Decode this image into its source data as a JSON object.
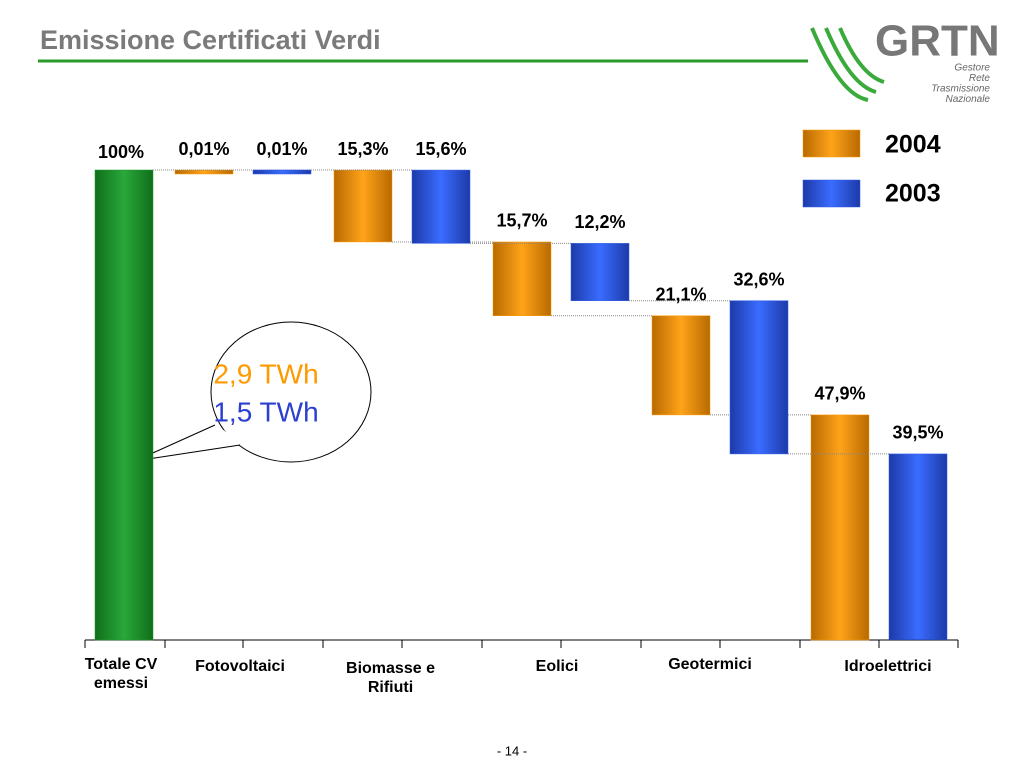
{
  "header": {
    "title": "Emissione Certificati Verdi"
  },
  "logo": {
    "name": "GRTN",
    "tagline": [
      "Gestore",
      "Rete",
      "Trasmissione",
      "Nazionale"
    ]
  },
  "chart_data": {
    "type": "waterfall",
    "categories": [
      "Totale CV emessi",
      "Fotovoltaici",
      "Biomasse e Rifiuti",
      "Eolici",
      "Geotermici",
      "Idroelettrici"
    ],
    "total": {
      "value": 100,
      "value_label": "100%",
      "color": "#1e9a2a"
    },
    "series": [
      {
        "name": "2004",
        "color": "#ff9900",
        "values": [
          null,
          0.01,
          15.3,
          15.7,
          21.1,
          47.9
        ],
        "value_labels": [
          null,
          "0,01%",
          "15,3%",
          "15,7%",
          "21,1%",
          "47,9%"
        ]
      },
      {
        "name": "2003",
        "color": "#2f5fe8",
        "values": [
          null,
          0.01,
          15.6,
          12.2,
          32.6,
          39.5
        ],
        "value_labels": [
          null,
          "0,01%",
          "15,6%",
          "12,2%",
          "32,6%",
          "39,5%"
        ]
      }
    ],
    "ylim": [
      0,
      100
    ],
    "annotations": [
      {
        "text": "2,9 TWh",
        "color": "#ff9900"
      },
      {
        "text": "1,5 TWh",
        "color": "#2b3fd0"
      }
    ]
  },
  "footer": {
    "page": "- 14 -"
  }
}
